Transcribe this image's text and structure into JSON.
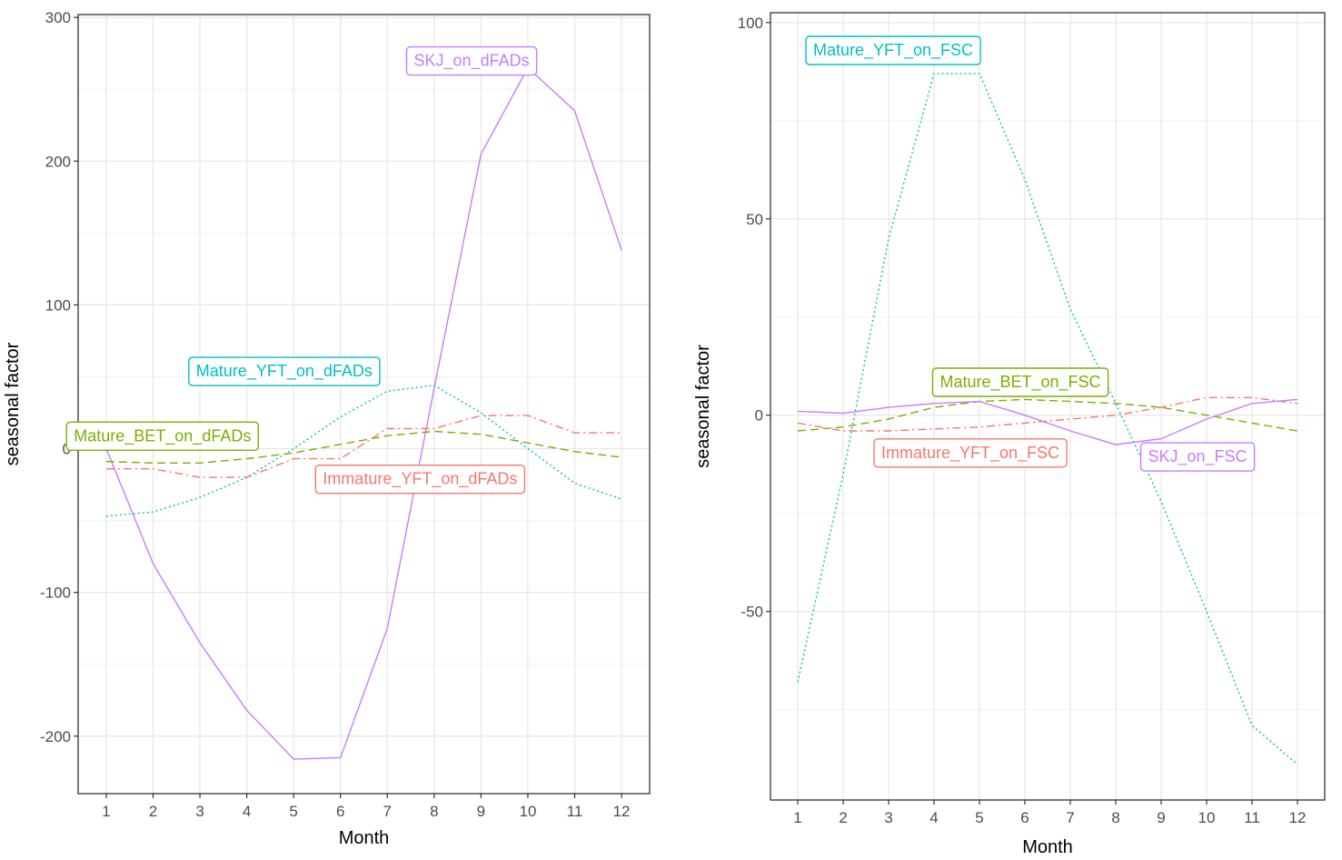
{
  "chart_data": [
    {
      "type": "line",
      "title": "",
      "xlabel": "Month",
      "ylabel": "seasonal factor",
      "x": [
        1,
        2,
        3,
        4,
        5,
        6,
        7,
        8,
        9,
        10,
        11,
        12
      ],
      "xlim": [
        0.4,
        12.6
      ],
      "ylim": [
        -240,
        302
      ],
      "yticks": [
        -200,
        -100,
        0,
        100,
        200,
        300
      ],
      "grid": true,
      "series": [
        {
          "name": "SKJ_on_dFADs",
          "color": "#C77CFF",
          "dash": "solid",
          "values": [
            0,
            -80,
            -135,
            -182,
            -216,
            -215,
            -125,
            42,
            205,
            265,
            235,
            138
          ],
          "label_at": [
            8.8,
            270
          ]
        },
        {
          "name": "Mature_YFT_on_dFADs",
          "color": "#00BFC4",
          "dash": "dotted",
          "values": [
            -47,
            -44,
            -34,
            -20,
            0,
            22,
            40,
            44,
            25,
            0,
            -24,
            -35
          ],
          "label_at": [
            4.8,
            54
          ]
        },
        {
          "name": "Mature_BET_on_dFADs",
          "color": "#7CAE00",
          "dash": "dashed",
          "values": [
            -9,
            -10,
            -10,
            -7,
            -3,
            3,
            9,
            12,
            10,
            4,
            -2,
            -6
          ],
          "label_at": [
            2.2,
            9
          ]
        },
        {
          "name": "Immature_YFT_on_dFADs",
          "color": "#F8766D",
          "dash": "dashdot",
          "values": [
            -14,
            -14,
            -20,
            -20,
            -7,
            -7,
            14,
            14,
            23,
            23,
            11,
            11
          ],
          "label_at": [
            7.7,
            -21
          ]
        }
      ]
    },
    {
      "type": "line",
      "title": "",
      "xlabel": "Month",
      "ylabel": "seasonal factor",
      "x": [
        1,
        2,
        3,
        4,
        5,
        6,
        7,
        8,
        9,
        10,
        11,
        12
      ],
      "xlim": [
        0.4,
        12.6
      ],
      "ylim": [
        -98,
        102.5
      ],
      "yticks": [
        -50,
        0,
        50,
        100
      ],
      "grid": true,
      "series": [
        {
          "name": "Mature_YFT_on_FSC",
          "color": "#00BFC4",
          "dash": "dotted",
          "values": [
            -68,
            -15,
            45,
            87,
            87,
            60,
            27,
            3,
            -22,
            -50,
            -79,
            -89
          ],
          "label_at": [
            3.1,
            93
          ]
        },
        {
          "name": "Mature_BET_on_FSC",
          "color": "#7CAE00",
          "dash": "dashed",
          "values": [
            -4,
            -3,
            -1,
            2,
            3.5,
            4,
            3.5,
            3,
            2,
            0,
            -2,
            -4
          ],
          "label_at": [
            5.9,
            8.5
          ]
        },
        {
          "name": "Immature_YFT_on_FSC",
          "color": "#F8766D",
          "dash": "dashdot",
          "values": [
            -2,
            -4,
            -4,
            -3.5,
            -3,
            -2,
            -1,
            0,
            2,
            4.5,
            4.5,
            3
          ],
          "label_at": [
            4.8,
            -9.5
          ]
        },
        {
          "name": "SKJ_on_FSC",
          "color": "#C77CFF",
          "dash": "solid",
          "values": [
            1,
            0.5,
            2,
            3,
            3.5,
            0,
            -4,
            -7.5,
            -6,
            -1,
            3,
            4
          ],
          "label_at": [
            9.8,
            -10.5
          ]
        }
      ]
    }
  ]
}
